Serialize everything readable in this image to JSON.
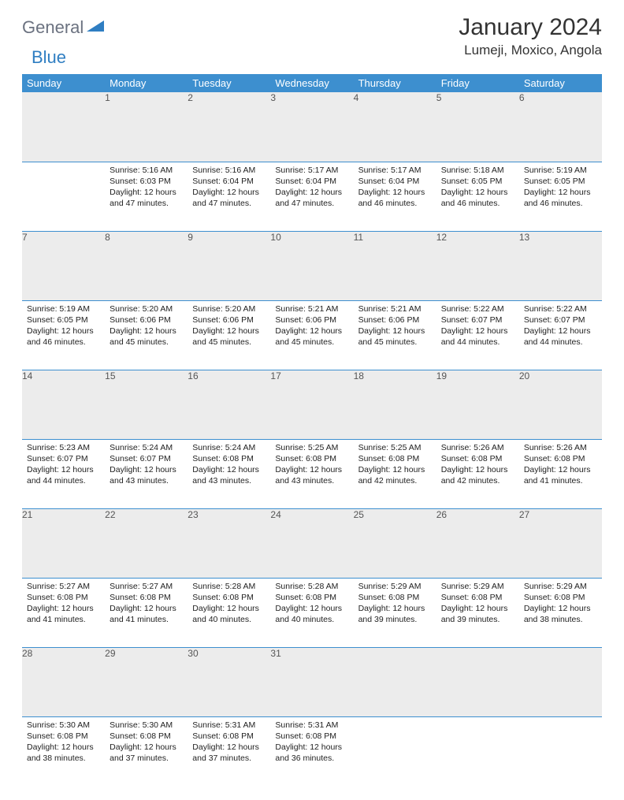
{
  "logo": {
    "text1": "General",
    "text2": "Blue"
  },
  "title": "January 2024",
  "location": "Lumeji, Moxico, Angola",
  "header_bg": "#3d8fcf",
  "weekdays": [
    "Sunday",
    "Monday",
    "Tuesday",
    "Wednesday",
    "Thursday",
    "Friday",
    "Saturday"
  ],
  "weeks": [
    [
      null,
      {
        "n": "1",
        "sunrise": "5:16 AM",
        "sunset": "6:03 PM",
        "daylight": "12 hours and 47 minutes."
      },
      {
        "n": "2",
        "sunrise": "5:16 AM",
        "sunset": "6:04 PM",
        "daylight": "12 hours and 47 minutes."
      },
      {
        "n": "3",
        "sunrise": "5:17 AM",
        "sunset": "6:04 PM",
        "daylight": "12 hours and 47 minutes."
      },
      {
        "n": "4",
        "sunrise": "5:17 AM",
        "sunset": "6:04 PM",
        "daylight": "12 hours and 46 minutes."
      },
      {
        "n": "5",
        "sunrise": "5:18 AM",
        "sunset": "6:05 PM",
        "daylight": "12 hours and 46 minutes."
      },
      {
        "n": "6",
        "sunrise": "5:19 AM",
        "sunset": "6:05 PM",
        "daylight": "12 hours and 46 minutes."
      }
    ],
    [
      {
        "n": "7",
        "sunrise": "5:19 AM",
        "sunset": "6:05 PM",
        "daylight": "12 hours and 46 minutes."
      },
      {
        "n": "8",
        "sunrise": "5:20 AM",
        "sunset": "6:06 PM",
        "daylight": "12 hours and 45 minutes."
      },
      {
        "n": "9",
        "sunrise": "5:20 AM",
        "sunset": "6:06 PM",
        "daylight": "12 hours and 45 minutes."
      },
      {
        "n": "10",
        "sunrise": "5:21 AM",
        "sunset": "6:06 PM",
        "daylight": "12 hours and 45 minutes."
      },
      {
        "n": "11",
        "sunrise": "5:21 AM",
        "sunset": "6:06 PM",
        "daylight": "12 hours and 45 minutes."
      },
      {
        "n": "12",
        "sunrise": "5:22 AM",
        "sunset": "6:07 PM",
        "daylight": "12 hours and 44 minutes."
      },
      {
        "n": "13",
        "sunrise": "5:22 AM",
        "sunset": "6:07 PM",
        "daylight": "12 hours and 44 minutes."
      }
    ],
    [
      {
        "n": "14",
        "sunrise": "5:23 AM",
        "sunset": "6:07 PM",
        "daylight": "12 hours and 44 minutes."
      },
      {
        "n": "15",
        "sunrise": "5:24 AM",
        "sunset": "6:07 PM",
        "daylight": "12 hours and 43 minutes."
      },
      {
        "n": "16",
        "sunrise": "5:24 AM",
        "sunset": "6:08 PM",
        "daylight": "12 hours and 43 minutes."
      },
      {
        "n": "17",
        "sunrise": "5:25 AM",
        "sunset": "6:08 PM",
        "daylight": "12 hours and 43 minutes."
      },
      {
        "n": "18",
        "sunrise": "5:25 AM",
        "sunset": "6:08 PM",
        "daylight": "12 hours and 42 minutes."
      },
      {
        "n": "19",
        "sunrise": "5:26 AM",
        "sunset": "6:08 PM",
        "daylight": "12 hours and 42 minutes."
      },
      {
        "n": "20",
        "sunrise": "5:26 AM",
        "sunset": "6:08 PM",
        "daylight": "12 hours and 41 minutes."
      }
    ],
    [
      {
        "n": "21",
        "sunrise": "5:27 AM",
        "sunset": "6:08 PM",
        "daylight": "12 hours and 41 minutes."
      },
      {
        "n": "22",
        "sunrise": "5:27 AM",
        "sunset": "6:08 PM",
        "daylight": "12 hours and 41 minutes."
      },
      {
        "n": "23",
        "sunrise": "5:28 AM",
        "sunset": "6:08 PM",
        "daylight": "12 hours and 40 minutes."
      },
      {
        "n": "24",
        "sunrise": "5:28 AM",
        "sunset": "6:08 PM",
        "daylight": "12 hours and 40 minutes."
      },
      {
        "n": "25",
        "sunrise": "5:29 AM",
        "sunset": "6:08 PM",
        "daylight": "12 hours and 39 minutes."
      },
      {
        "n": "26",
        "sunrise": "5:29 AM",
        "sunset": "6:08 PM",
        "daylight": "12 hours and 39 minutes."
      },
      {
        "n": "27",
        "sunrise": "5:29 AM",
        "sunset": "6:08 PM",
        "daylight": "12 hours and 38 minutes."
      }
    ],
    [
      {
        "n": "28",
        "sunrise": "5:30 AM",
        "sunset": "6:08 PM",
        "daylight": "12 hours and 38 minutes."
      },
      {
        "n": "29",
        "sunrise": "5:30 AM",
        "sunset": "6:08 PM",
        "daylight": "12 hours and 37 minutes."
      },
      {
        "n": "30",
        "sunrise": "5:31 AM",
        "sunset": "6:08 PM",
        "daylight": "12 hours and 37 minutes."
      },
      {
        "n": "31",
        "sunrise": "5:31 AM",
        "sunset": "6:08 PM",
        "daylight": "12 hours and 36 minutes."
      },
      null,
      null,
      null
    ]
  ],
  "labels": {
    "sunrise": "Sunrise:",
    "sunset": "Sunset:",
    "daylight": "Daylight:"
  }
}
